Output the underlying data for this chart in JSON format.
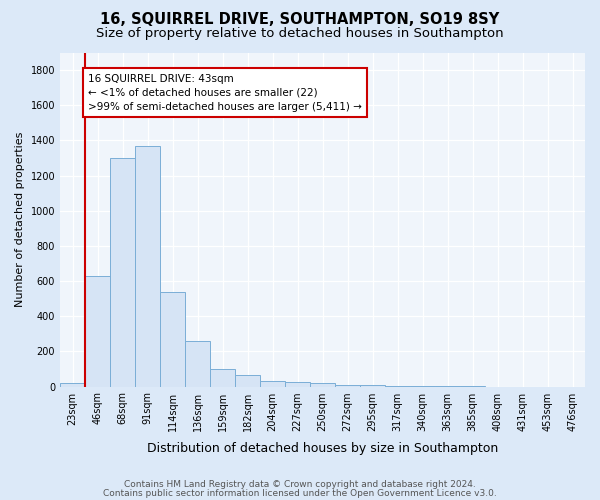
{
  "title1": "16, SQUIRREL DRIVE, SOUTHAMPTON, SO19 8SY",
  "title2": "Size of property relative to detached houses in Southampton",
  "xlabel": "Distribution of detached houses by size in Southampton",
  "ylabel": "Number of detached properties",
  "categories": [
    "23sqm",
    "46sqm",
    "68sqm",
    "91sqm",
    "114sqm",
    "136sqm",
    "159sqm",
    "182sqm",
    "204sqm",
    "227sqm",
    "250sqm",
    "272sqm",
    "295sqm",
    "317sqm",
    "340sqm",
    "363sqm",
    "385sqm",
    "408sqm",
    "431sqm",
    "453sqm",
    "476sqm"
  ],
  "values": [
    22,
    630,
    1300,
    1370,
    540,
    260,
    100,
    65,
    30,
    25,
    18,
    10,
    8,
    5,
    3,
    2,
    1,
    0,
    0,
    0,
    0
  ],
  "bar_color": "#d6e4f5",
  "bar_edge_color": "#7aaed6",
  "redline_color": "#cc0000",
  "annotation_text": "16 SQUIRREL DRIVE: 43sqm\n← <1% of detached houses are smaller (22)\n>99% of semi-detached houses are larger (5,411) →",
  "annotation_box_color": "#ffffff",
  "annotation_box_edge": "#cc0000",
  "ylim": [
    0,
    1900
  ],
  "yticks": [
    0,
    200,
    400,
    600,
    800,
    1000,
    1200,
    1400,
    1600,
    1800
  ],
  "plot_bg": "#f0f5fb",
  "fig_bg": "#dce9f8",
  "footer1": "Contains HM Land Registry data © Crown copyright and database right 2024.",
  "footer2": "Contains public sector information licensed under the Open Government Licence v3.0.",
  "title1_fontsize": 10.5,
  "title2_fontsize": 9.5,
  "xlabel_fontsize": 9,
  "ylabel_fontsize": 8,
  "tick_fontsize": 7,
  "annotation_fontsize": 7.5,
  "footer_fontsize": 6.5
}
